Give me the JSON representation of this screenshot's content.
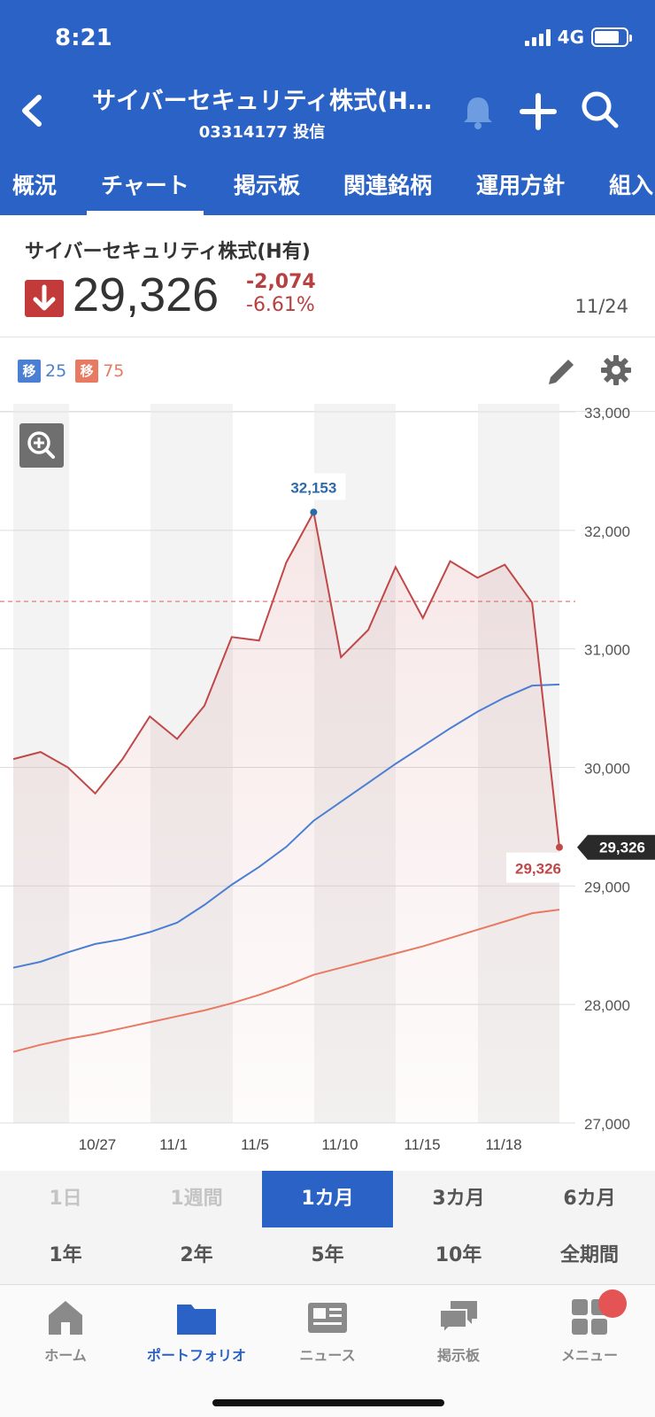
{
  "status_bar": {
    "time": "8:21",
    "network": "4G"
  },
  "header": {
    "title": "サイバーセキュリティ株式(H…",
    "code": "03314177 投信",
    "icons": [
      "back-chevron-icon",
      "bell-icon",
      "plus-icon",
      "search-icon"
    ],
    "tabs": [
      {
        "label": "概況",
        "active": false
      },
      {
        "label": "チャート",
        "active": true
      },
      {
        "label": "掲示板",
        "active": false
      },
      {
        "label": "関連銘柄",
        "active": false
      },
      {
        "label": "運用方針",
        "active": false
      },
      {
        "label": "組入",
        "active": false
      }
    ]
  },
  "stock": {
    "name": "サイバーセキュリティ株式(H有)",
    "price": "29,326",
    "change": "-2,074",
    "change_pct": "-6.61%",
    "date": "11/24",
    "direction_icon": "arrow-down-icon"
  },
  "legend": {
    "ma25_tag": "移",
    "ma25_value": "25",
    "ma75_tag": "移",
    "ma75_value": "75"
  },
  "colors": {
    "brand": "#2a62c6",
    "price_line": "#c04848",
    "ma25": "#4a7fd4",
    "ma75": "#e87a62",
    "down": "#c23a3a"
  },
  "chart_data": {
    "type": "line",
    "x_labels": [
      "10/27",
      "11/1",
      "11/5",
      "11/10",
      "11/15",
      "11/18"
    ],
    "y_ticks": [
      "33,000",
      "32,000",
      "31,000",
      "30,000",
      "29,000",
      "28,000",
      "27,000"
    ],
    "ylim": [
      27000,
      33000
    ],
    "price": [
      30070,
      30130,
      30000,
      29780,
      30070,
      30430,
      30240,
      30520,
      31100,
      31070,
      31730,
      32153,
      30930,
      31160,
      31690,
      31260,
      31740,
      31600,
      31710,
      31390,
      29326
    ],
    "ma25": [
      28310,
      28360,
      28440,
      28510,
      28550,
      28610,
      28690,
      28840,
      29010,
      29160,
      29330,
      29550,
      29710,
      29870,
      30030,
      30180,
      30330,
      30470,
      30590,
      30690,
      30700
    ],
    "ma75": [
      27600,
      27660,
      27710,
      27750,
      27800,
      27850,
      27900,
      27950,
      28010,
      28080,
      28160,
      28250,
      28310,
      28370,
      28430,
      28490,
      28560,
      28630,
      28700,
      28770,
      28800
    ],
    "reference_line": 31400,
    "high_label": "32,153",
    "last_label": "29,326",
    "current_price_tag": "29,326",
    "grid": true
  },
  "periods": [
    {
      "label": "1日",
      "state": "disabled"
    },
    {
      "label": "1週間",
      "state": "disabled"
    },
    {
      "label": "1カ月",
      "state": "active"
    },
    {
      "label": "3カ月",
      "state": "normal"
    },
    {
      "label": "6カ月",
      "state": "normal"
    },
    {
      "label": "1年",
      "state": "normal"
    },
    {
      "label": "2年",
      "state": "normal"
    },
    {
      "label": "5年",
      "state": "normal"
    },
    {
      "label": "10年",
      "state": "normal"
    },
    {
      "label": "全期間",
      "state": "normal"
    }
  ],
  "bottom_nav": [
    {
      "label": "ホーム",
      "icon": "home-icon",
      "active": false
    },
    {
      "label": "ポートフォリオ",
      "icon": "folder-icon",
      "active": true
    },
    {
      "label": "ニュース",
      "icon": "news-icon",
      "active": false
    },
    {
      "label": "掲示板",
      "icon": "chat-bubbles-icon",
      "active": false
    },
    {
      "label": "メニュー",
      "icon": "grid-menu-icon",
      "active": false
    }
  ]
}
